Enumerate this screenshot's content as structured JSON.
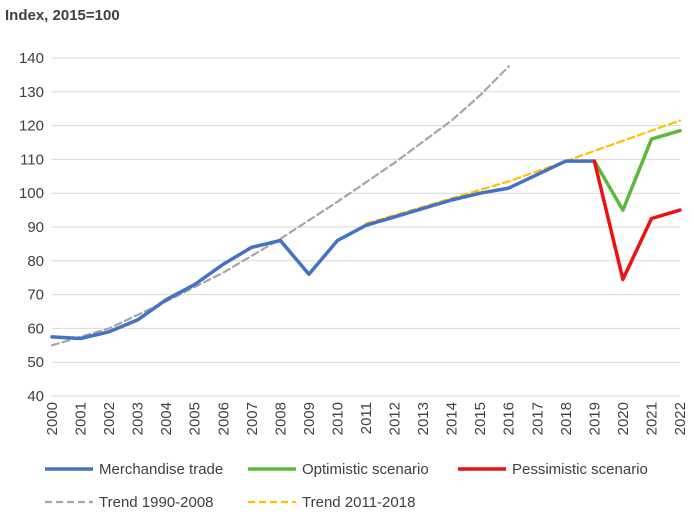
{
  "chart_data": {
    "type": "line",
    "unit_label": "Index, 2015=100",
    "ylim": [
      40,
      140
    ],
    "y_ticks": [
      40,
      50,
      60,
      70,
      80,
      90,
      100,
      110,
      120,
      130,
      140
    ],
    "x_ticks": [
      2000,
      2001,
      2002,
      2003,
      2004,
      2005,
      2006,
      2007,
      2008,
      2009,
      2010,
      2011,
      2012,
      2013,
      2014,
      2015,
      2016,
      2017,
      2018,
      2019,
      2020,
      2021,
      2022
    ],
    "xlim": [
      2000,
      2022
    ],
    "grid": "horizontal",
    "legend_position": "bottom",
    "series": [
      {
        "name": "Merchandise trade",
        "color": "#4472c4",
        "style": "solid",
        "points": [
          [
            2000,
            57.5
          ],
          [
            2001,
            57
          ],
          [
            2002,
            59
          ],
          [
            2003,
            62.5
          ],
          [
            2004,
            68.5
          ],
          [
            2005,
            73
          ],
          [
            2006,
            79
          ],
          [
            2007,
            84
          ],
          [
            2008,
            86
          ],
          [
            2009,
            76
          ],
          [
            2010,
            86
          ],
          [
            2011,
            90.5
          ],
          [
            2012,
            93
          ],
          [
            2013,
            95.5
          ],
          [
            2014,
            98
          ],
          [
            2015,
            100
          ],
          [
            2016,
            101.5
          ],
          [
            2017,
            105.5
          ],
          [
            2018,
            109.5
          ],
          [
            2019,
            109.5
          ]
        ]
      },
      {
        "name": "Optimistic scenario",
        "color": "#5cb83e",
        "style": "solid",
        "points": [
          [
            2019,
            109.5
          ],
          [
            2020,
            95
          ],
          [
            2021,
            116
          ],
          [
            2022,
            118.5
          ]
        ]
      },
      {
        "name": "Pessimistic scenario",
        "color": "#ee1111",
        "style": "solid",
        "points": [
          [
            2019,
            109.5
          ],
          [
            2020,
            74.5
          ],
          [
            2021,
            92.5
          ],
          [
            2022,
            95
          ]
        ]
      },
      {
        "name": "Trend 1990-2008",
        "color": "#a6a6a6",
        "style": "dashed",
        "points": [
          [
            2000,
            55
          ],
          [
            2002,
            60
          ],
          [
            2004,
            68
          ],
          [
            2006,
            76.5
          ],
          [
            2008,
            86.5
          ],
          [
            2010,
            97.5
          ],
          [
            2012,
            109
          ],
          [
            2014,
            121.5
          ],
          [
            2015,
            129
          ],
          [
            2016,
            137.5
          ]
        ]
      },
      {
        "name": "Trend 2011-2018",
        "color": "#ffc000",
        "style": "dashed",
        "points": [
          [
            2011,
            91
          ],
          [
            2014,
            98.5
          ],
          [
            2016,
            103.5
          ],
          [
            2018,
            109.5
          ],
          [
            2020,
            115.5
          ],
          [
            2022,
            121.5
          ]
        ]
      }
    ]
  }
}
